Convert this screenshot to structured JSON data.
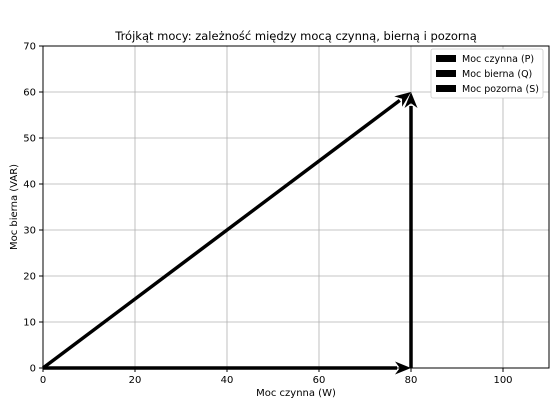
{
  "chart_data": {
    "type": "vector",
    "title": "Trójkąt mocy: zależność między mocą czynną, bierną i pozorną",
    "xlabel": "Moc czynna (W)",
    "ylabel": "Moc bierna (VAR)",
    "xlim": [
      0,
      110
    ],
    "ylim": [
      0,
      70
    ],
    "xticks": [
      0,
      20,
      40,
      60,
      80,
      100
    ],
    "yticks": [
      0,
      10,
      20,
      30,
      40,
      50,
      60,
      70
    ],
    "grid": true,
    "legend_position": "top-right",
    "series": [
      {
        "name": "Moc czynna (P)",
        "x0": 0,
        "y0": 0,
        "x1": 80,
        "y1": 0,
        "color": "#000000"
      },
      {
        "name": "Moc bierna (Q)",
        "x0": 80,
        "y0": 0,
        "x1": 80,
        "y1": 60,
        "color": "#000000"
      },
      {
        "name": "Moc pozorna (S)",
        "x0": 0,
        "y0": 0,
        "x1": 80,
        "y1": 60,
        "color": "#000000"
      }
    ]
  }
}
